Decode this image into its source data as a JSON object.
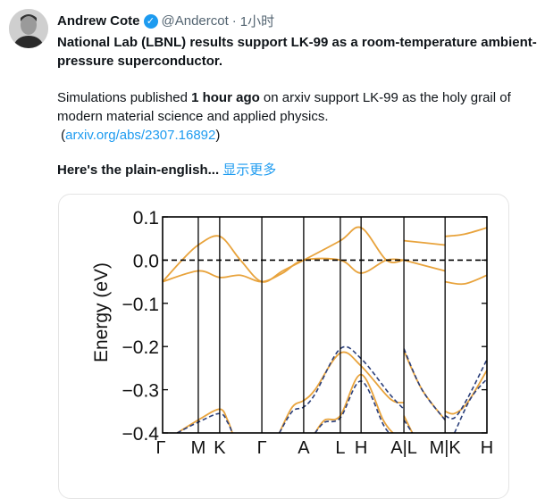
{
  "tweet": {
    "author_name": "Andrew Cote",
    "verified_icon": "verified-badge-icon",
    "handle": "@Andercot",
    "separator": "·",
    "time": "1小时",
    "title_line": "National Lab (LBNL) results support LK-99 as a room-temperature ambient-pressure superconductor.",
    "body_before_bold": "Simulations published ",
    "body_bold": "1 hour ago",
    "body_after_bold": " on arxiv support LK-99 as the holy grail of modern material science and applied physics.",
    "link_open": "(",
    "link_text": "arxiv.org/abs/2307.16892",
    "link_close": ")",
    "teaser": "Here's the plain-english...",
    "show_more": "显示更多",
    "link_color": "#1d9bf0"
  },
  "chart_data": {
    "type": "line",
    "ylabel": "Energy (eV)",
    "ylim": [
      -0.4,
      0.1
    ],
    "yticks": [
      "0.1",
      "0.0",
      "−0.1",
      "−0.2",
      "−0.3",
      "−0.4"
    ],
    "ytick_values": [
      0.1,
      0.0,
      -0.1,
      -0.2,
      -0.3,
      -0.4
    ],
    "xticks": [
      "Γ",
      "M",
      "K",
      "Γ",
      "A",
      "L",
      "H",
      "A|L",
      "M|K",
      "H"
    ],
    "xtick_positions": [
      0,
      0.11,
      0.176,
      0.306,
      0.435,
      0.548,
      0.612,
      0.744,
      0.871,
      1.0
    ],
    "fermi_level": 0.0,
    "grid": false,
    "series": [
      {
        "style": "solid",
        "color": "#e8a33c",
        "segments": [
          [
            [
              0,
              -0.05
            ],
            [
              0.06,
              0.0
            ],
            [
              0.11,
              0.035
            ],
            [
              0.176,
              0.055
            ],
            [
              0.24,
              0.0
            ],
            [
              0.306,
              -0.05
            ],
            [
              0.37,
              -0.025
            ],
            [
              0.435,
              0.0
            ],
            [
              0.548,
              0.045
            ],
            [
              0.612,
              0.075
            ],
            [
              0.69,
              0.0
            ],
            [
              0.744,
              0.0
            ]
          ],
          [
            [
              0,
              -0.05
            ],
            [
              0.11,
              -0.025
            ],
            [
              0.176,
              -0.04
            ],
            [
              0.24,
              -0.035
            ],
            [
              0.306,
              -0.05
            ],
            [
              0.37,
              -0.03
            ],
            [
              0.435,
              0.0
            ],
            [
              0.548,
              0.0
            ],
            [
              0.612,
              -0.03
            ],
            [
              0.69,
              0.0
            ],
            [
              0.744,
              0.0
            ]
          ],
          [
            [
              0.744,
              0.045
            ],
            [
              0.871,
              0.035
            ]
          ],
          [
            [
              0.744,
              0.0
            ],
            [
              0.871,
              -0.025
            ]
          ],
          [
            [
              0.871,
              0.055
            ],
            [
              0.93,
              0.06
            ],
            [
              1.0,
              0.075
            ]
          ],
          [
            [
              0.871,
              -0.05
            ],
            [
              0.93,
              -0.055
            ],
            [
              1.0,
              -0.035
            ]
          ],
          [
            [
              0.045,
              -0.4
            ],
            [
              0.11,
              -0.37
            ],
            [
              0.176,
              -0.345
            ],
            [
              0.2,
              -0.37
            ],
            [
              0.215,
              -0.4
            ]
          ],
          [
            [
              0.36,
              -0.4
            ],
            [
              0.4,
              -0.34
            ],
            [
              0.435,
              -0.325
            ],
            [
              0.47,
              -0.3
            ],
            [
              0.548,
              -0.215
            ],
            [
              0.612,
              -0.245
            ],
            [
              0.7,
              -0.32
            ],
            [
              0.744,
              -0.33
            ]
          ],
          [
            [
              0.47,
              -0.4
            ],
            [
              0.5,
              -0.37
            ],
            [
              0.548,
              -0.36
            ],
            [
              0.612,
              -0.265
            ],
            [
              0.68,
              -0.37
            ],
            [
              0.71,
              -0.4
            ]
          ],
          [
            [
              0.744,
              -0.36
            ],
            [
              0.77,
              -0.4
            ]
          ],
          [
            [
              0.744,
              -0.21
            ],
            [
              0.8,
              -0.3
            ],
            [
              0.871,
              -0.37
            ]
          ],
          [
            [
              0.871,
              -0.35
            ],
            [
              0.9,
              -0.355
            ],
            [
              0.94,
              -0.33
            ],
            [
              1.0,
              -0.255
            ]
          ]
        ]
      },
      {
        "style": "dashed",
        "color": "#2b3f7a",
        "segments": [
          [
            [
              0.045,
              -0.4
            ],
            [
              0.11,
              -0.375
            ],
            [
              0.176,
              -0.355
            ],
            [
              0.2,
              -0.375
            ],
            [
              0.215,
              -0.4
            ]
          ],
          [
            [
              0.36,
              -0.4
            ],
            [
              0.4,
              -0.35
            ],
            [
              0.435,
              -0.34
            ],
            [
              0.47,
              -0.31
            ],
            [
              0.548,
              -0.205
            ],
            [
              0.612,
              -0.228
            ],
            [
              0.7,
              -0.31
            ],
            [
              0.744,
              -0.345
            ]
          ],
          [
            [
              0.47,
              -0.4
            ],
            [
              0.5,
              -0.375
            ],
            [
              0.548,
              -0.365
            ],
            [
              0.612,
              -0.28
            ],
            [
              0.68,
              -0.38
            ],
            [
              0.7,
              -0.4
            ]
          ],
          [
            [
              0.744,
              -0.37
            ],
            [
              0.77,
              -0.4
            ]
          ],
          [
            [
              0.744,
              -0.205
            ],
            [
              0.8,
              -0.3
            ],
            [
              0.871,
              -0.37
            ]
          ],
          [
            [
              0.871,
              -0.36
            ],
            [
              0.9,
              -0.365
            ],
            [
              0.94,
              -0.32
            ],
            [
              1.0,
              -0.23
            ]
          ],
          [
            [
              0.9,
              -0.4
            ],
            [
              0.95,
              -0.32
            ],
            [
              1.0,
              -0.275
            ]
          ]
        ]
      }
    ]
  }
}
